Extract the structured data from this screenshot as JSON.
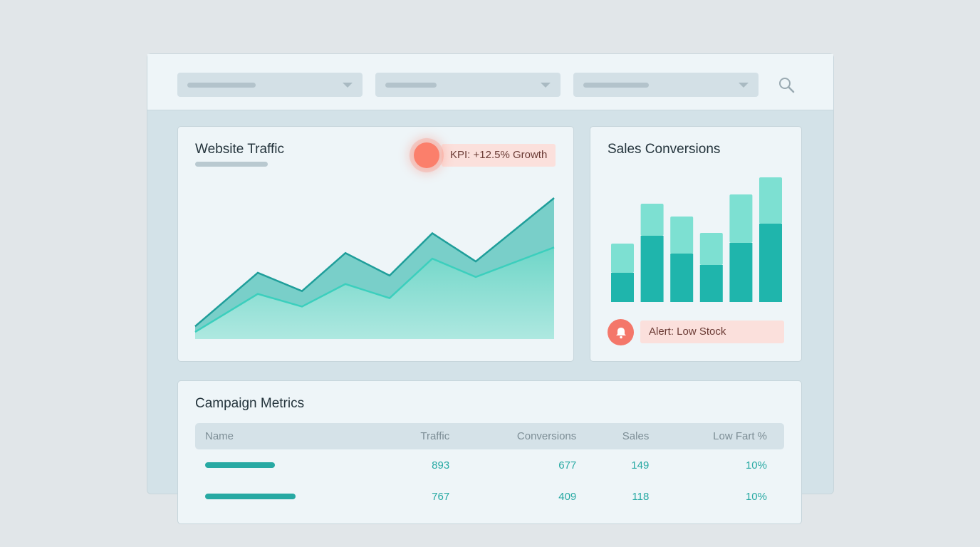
{
  "filters": [
    {
      "placeholder": ""
    },
    {
      "placeholder": ""
    },
    {
      "placeholder": ""
    }
  ],
  "search_icon": "search-icon",
  "traffic": {
    "title": "Website Traffic",
    "kpi": "KPI: +12.5% Growth"
  },
  "sales": {
    "title": "Sales Conversions",
    "alert": "Alert: Low Stock"
  },
  "campaign": {
    "title": "Campaign Metrics",
    "headers": [
      "Name",
      "Traffic",
      "Conversions",
      "Sales",
      "Low Fart %"
    ],
    "rows": [
      [
        "",
        "893",
        "677",
        "149",
        "10%"
      ],
      [
        "",
        "767",
        "409",
        "118",
        "10%"
      ]
    ]
  },
  "colors": {
    "accent": "#27a9a3",
    "light_accent": "#7de0d2",
    "alert": "#fb7f6b"
  },
  "chart_data": [
    {
      "type": "area",
      "title": "Website Traffic",
      "series": [
        {
          "values": [
            9,
            47,
            34,
            61,
            45,
            75,
            55,
            100
          ]
        },
        {
          "values": [
            5,
            32,
            23,
            39,
            29,
            57,
            44,
            65
          ]
        }
      ]
    },
    {
      "type": "bar",
      "title": "Sales Conversions",
      "stacked": true,
      "series": [
        {
          "values": [
            41,
            93,
            68,
            52,
            83,
            110
          ]
        },
        {
          "values": [
            41,
            45,
            52,
            45,
            68,
            65
          ]
        }
      ]
    }
  ]
}
